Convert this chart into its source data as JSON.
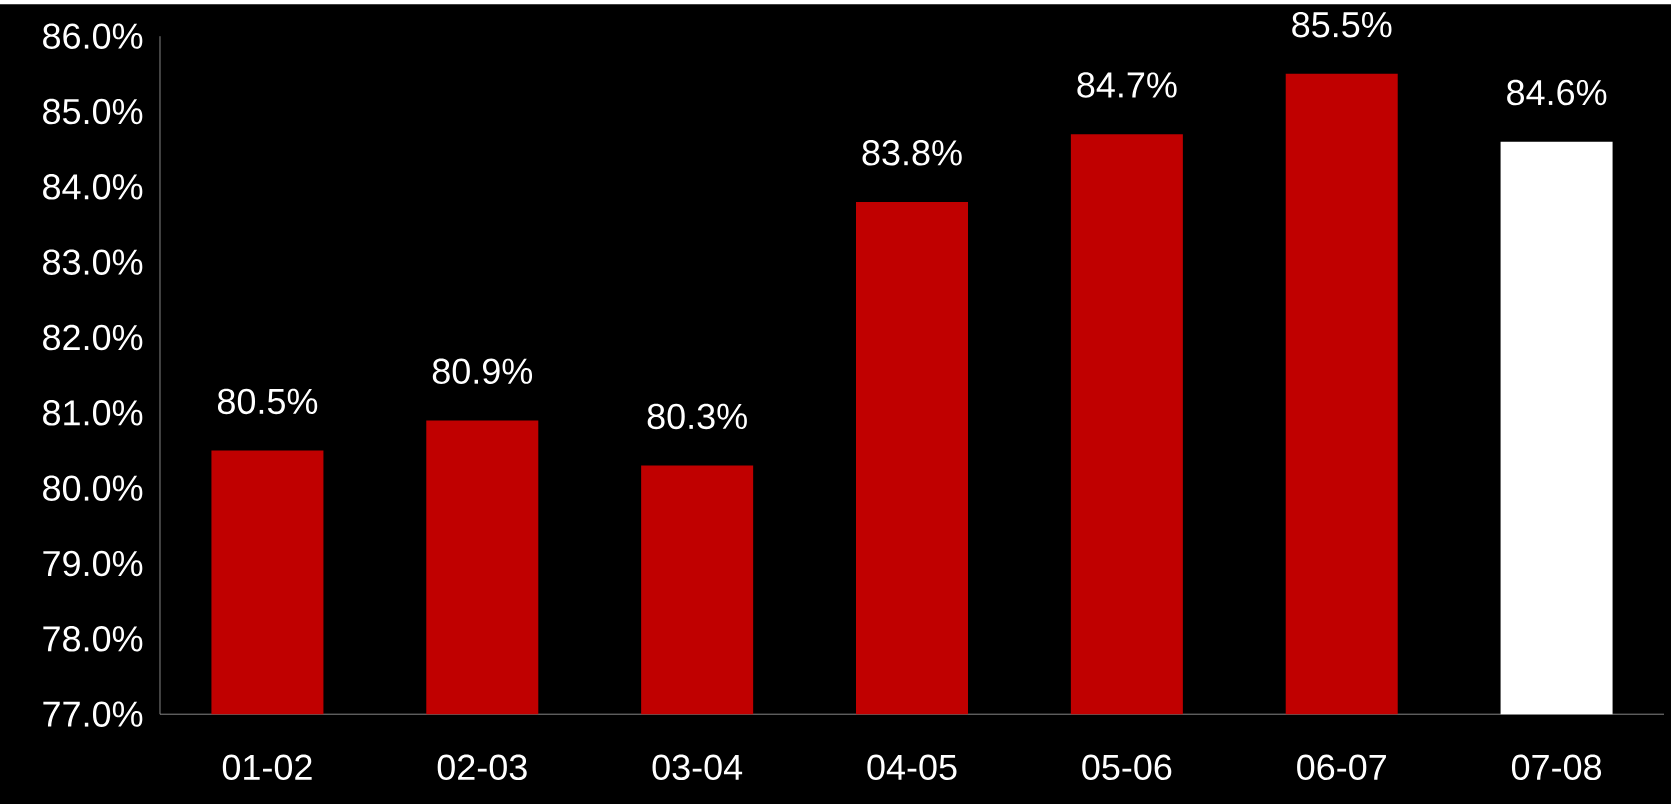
{
  "chart_data": {
    "type": "bar",
    "categories": [
      "01-02",
      "02-03",
      "03-04",
      "04-05",
      "05-06",
      "06-07",
      "07-08"
    ],
    "values": [
      80.5,
      80.9,
      80.3,
      83.8,
      84.7,
      85.5,
      84.6
    ],
    "value_labels": [
      "80.5%",
      "80.9%",
      "80.3%",
      "83.8%",
      "84.7%",
      "85.5%",
      "84.6%"
    ],
    "colors": [
      "#c00000",
      "#c00000",
      "#c00000",
      "#c00000",
      "#c00000",
      "#c00000",
      "#ffffff"
    ],
    "ylim": [
      77,
      86
    ],
    "yticks": [
      {
        "value": 77,
        "label": "77.0%"
      },
      {
        "value": 78,
        "label": "78.0%"
      },
      {
        "value": 79,
        "label": "79.0%"
      },
      {
        "value": 80,
        "label": "80.0%"
      },
      {
        "value": 81,
        "label": "81.0%"
      },
      {
        "value": 82,
        "label": "82.0%"
      },
      {
        "value": 83,
        "label": "83.0%"
      },
      {
        "value": 84,
        "label": "84.0%"
      },
      {
        "value": 85,
        "label": "85.0%"
      },
      {
        "value": 86,
        "label": "86.0%"
      }
    ],
    "grid": false
  }
}
